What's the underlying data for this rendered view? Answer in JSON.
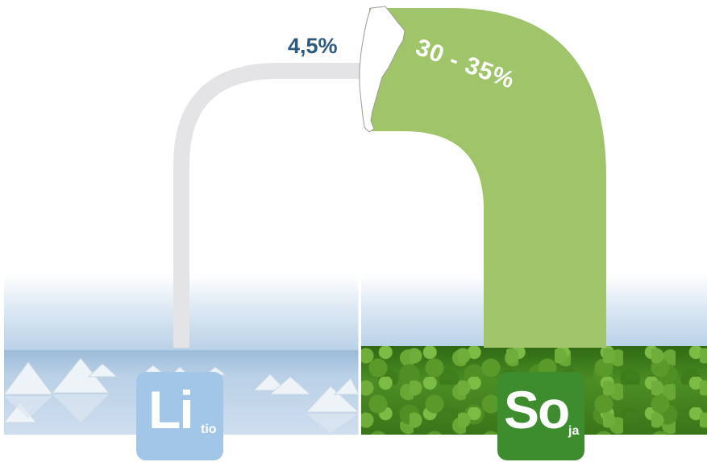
{
  "lithium": {
    "symbol": "Li",
    "subscript": "tio",
    "percentage": "4,5%",
    "badge_color": "#a2c6e8",
    "arc_color": "#e4e4e6",
    "label_color": "#2e5a7f"
  },
  "soy": {
    "symbol": "So",
    "subscript": "ja",
    "percentage": "30 - 35%",
    "badge_color": "#3d8c2e",
    "arc_color": "#a0c46a",
    "label_color": "#ffffff"
  },
  "map_icon": "argentina-map-icon"
}
